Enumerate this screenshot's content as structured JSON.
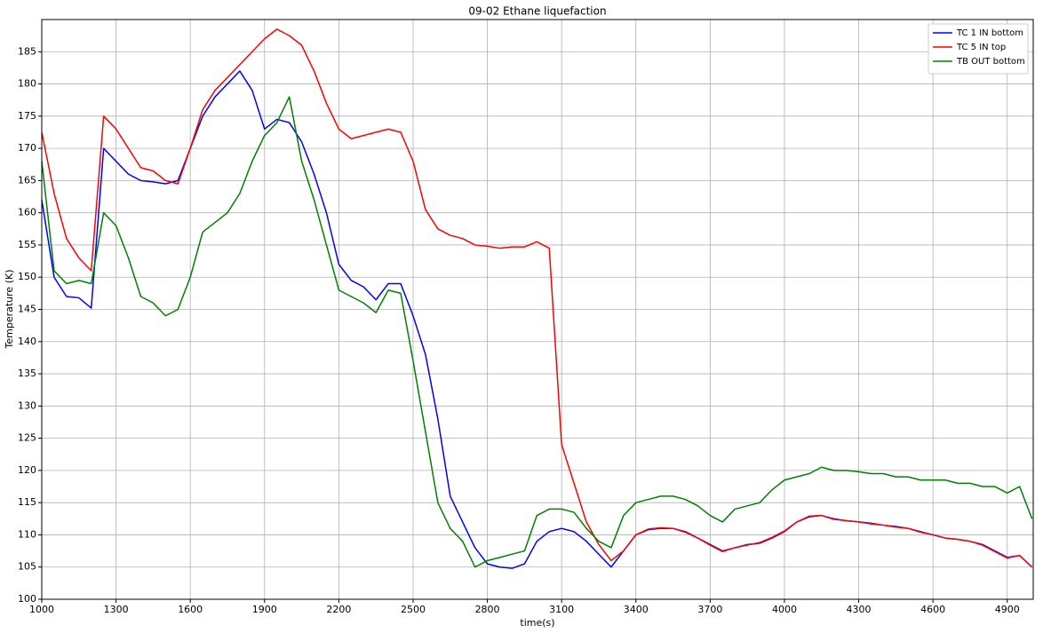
{
  "chart_data": {
    "type": "line",
    "title": "09-02 Ethane liquefaction",
    "x_label": "time(s)",
    "y_label": "Temperature (K)",
    "x": [
      1000,
      1050,
      1100,
      1150,
      1200,
      1250,
      1300,
      1350,
      1400,
      1450,
      1500,
      1550,
      1600,
      1650,
      1700,
      1750,
      1800,
      1850,
      1900,
      1950,
      2000,
      2050,
      2100,
      2150,
      2200,
      2250,
      2300,
      2350,
      2400,
      2450,
      2500,
      2550,
      2600,
      2650,
      2700,
      2750,
      2800,
      2850,
      2900,
      2950,
      3000,
      3050,
      3100,
      3150,
      3200,
      3250,
      3300,
      3350,
      3400,
      3450,
      3500,
      3550,
      3600,
      3650,
      3700,
      3750,
      3800,
      3850,
      3900,
      3950,
      4000,
      4050,
      4100,
      4150,
      4200,
      4250,
      4300,
      4350,
      4400,
      4450,
      4500,
      4550,
      4600,
      4650,
      4700,
      4750,
      4800,
      4850,
      4900,
      4950,
      5000
    ],
    "series": [
      {
        "name": "TC 1 IN bottom",
        "color": "#0000ff",
        "values": [
          162,
          150,
          147,
          146.8,
          145.2,
          170,
          168,
          166,
          165,
          164.8,
          164.5,
          165,
          170,
          175,
          178,
          180,
          182,
          179,
          173,
          174.5,
          174,
          171,
          166,
          160,
          152,
          149.5,
          148.5,
          146.5,
          149,
          149,
          144,
          138,
          128,
          116,
          112,
          108,
          105.5,
          105,
          104.8,
          105.5,
          109,
          110.5,
          111,
          110.5,
          109,
          107,
          105,
          107.5,
          110,
          110.8,
          111,
          111,
          110.5,
          109.5,
          108.5,
          107.5,
          108,
          108.5,
          108.7,
          109.5,
          110.5,
          112,
          112.8,
          113,
          112.5,
          112.2,
          112,
          111.8,
          111.5,
          111.3,
          111,
          110.5,
          110,
          109.5,
          109.3,
          109,
          108.5,
          107.5,
          106.5,
          106.8,
          105
        ]
      },
      {
        "name": "TC 5 IN top",
        "color": "#ff0000",
        "values": [
          172.5,
          163,
          156,
          153,
          151,
          175,
          173,
          170,
          167,
          166.5,
          165,
          164.5,
          170,
          176,
          179,
          181,
          183,
          185,
          187,
          188.5,
          187.5,
          186,
          182,
          177,
          173,
          171.5,
          172,
          172.5,
          173,
          172.5,
          168,
          160.5,
          157.5,
          156.5,
          156,
          155,
          154.8,
          154.5,
          154.7,
          154.7,
          155.5,
          154.5,
          124,
          118,
          112,
          108.5,
          106,
          107.5,
          110,
          110.9,
          111.1,
          111,
          110.4,
          109.5,
          108.4,
          107.4,
          108,
          108.4,
          108.8,
          109.6,
          110.6,
          112,
          112.9,
          113,
          112.4,
          112.2,
          112,
          111.7,
          111.5,
          111.2,
          111,
          110.4,
          110,
          109.5,
          109.3,
          109,
          108.4,
          107.4,
          106.4,
          106.8,
          105
        ]
      },
      {
        "name": "TB OUT bottom",
        "color": "#008000",
        "values": [
          168,
          151,
          149,
          149.5,
          149,
          160,
          158,
          153,
          147,
          146,
          144,
          145,
          150,
          157,
          158.5,
          160,
          163,
          168,
          172,
          174,
          178,
          168,
          162,
          155,
          148,
          147,
          146,
          144.5,
          148,
          147.5,
          137,
          126,
          115,
          111,
          109,
          105,
          106,
          106.5,
          107,
          107.5,
          113,
          114,
          114,
          113.5,
          111,
          109,
          108,
          113,
          115,
          115.5,
          116,
          116,
          115.5,
          114.5,
          113,
          112,
          114,
          114.5,
          115,
          117,
          118.5,
          119,
          119.5,
          120.5,
          120,
          120,
          119.8,
          119.5,
          119.5,
          119,
          119,
          118.5,
          118.5,
          118.5,
          118,
          118,
          117.5,
          117.5,
          116.5,
          117.5,
          112.5
        ]
      }
    ],
    "xlim": [
      1000,
      5005
    ],
    "ylim": [
      100,
      190
    ],
    "xticks": [
      1000,
      1300,
      1600,
      1900,
      2200,
      2500,
      2800,
      3100,
      3400,
      3700,
      4000,
      4300,
      4600,
      4900
    ],
    "yticks": [
      100,
      105,
      110,
      115,
      120,
      125,
      130,
      135,
      140,
      145,
      150,
      155,
      160,
      165,
      170,
      175,
      180,
      185
    ],
    "grid": true,
    "legend": "upper-right"
  }
}
